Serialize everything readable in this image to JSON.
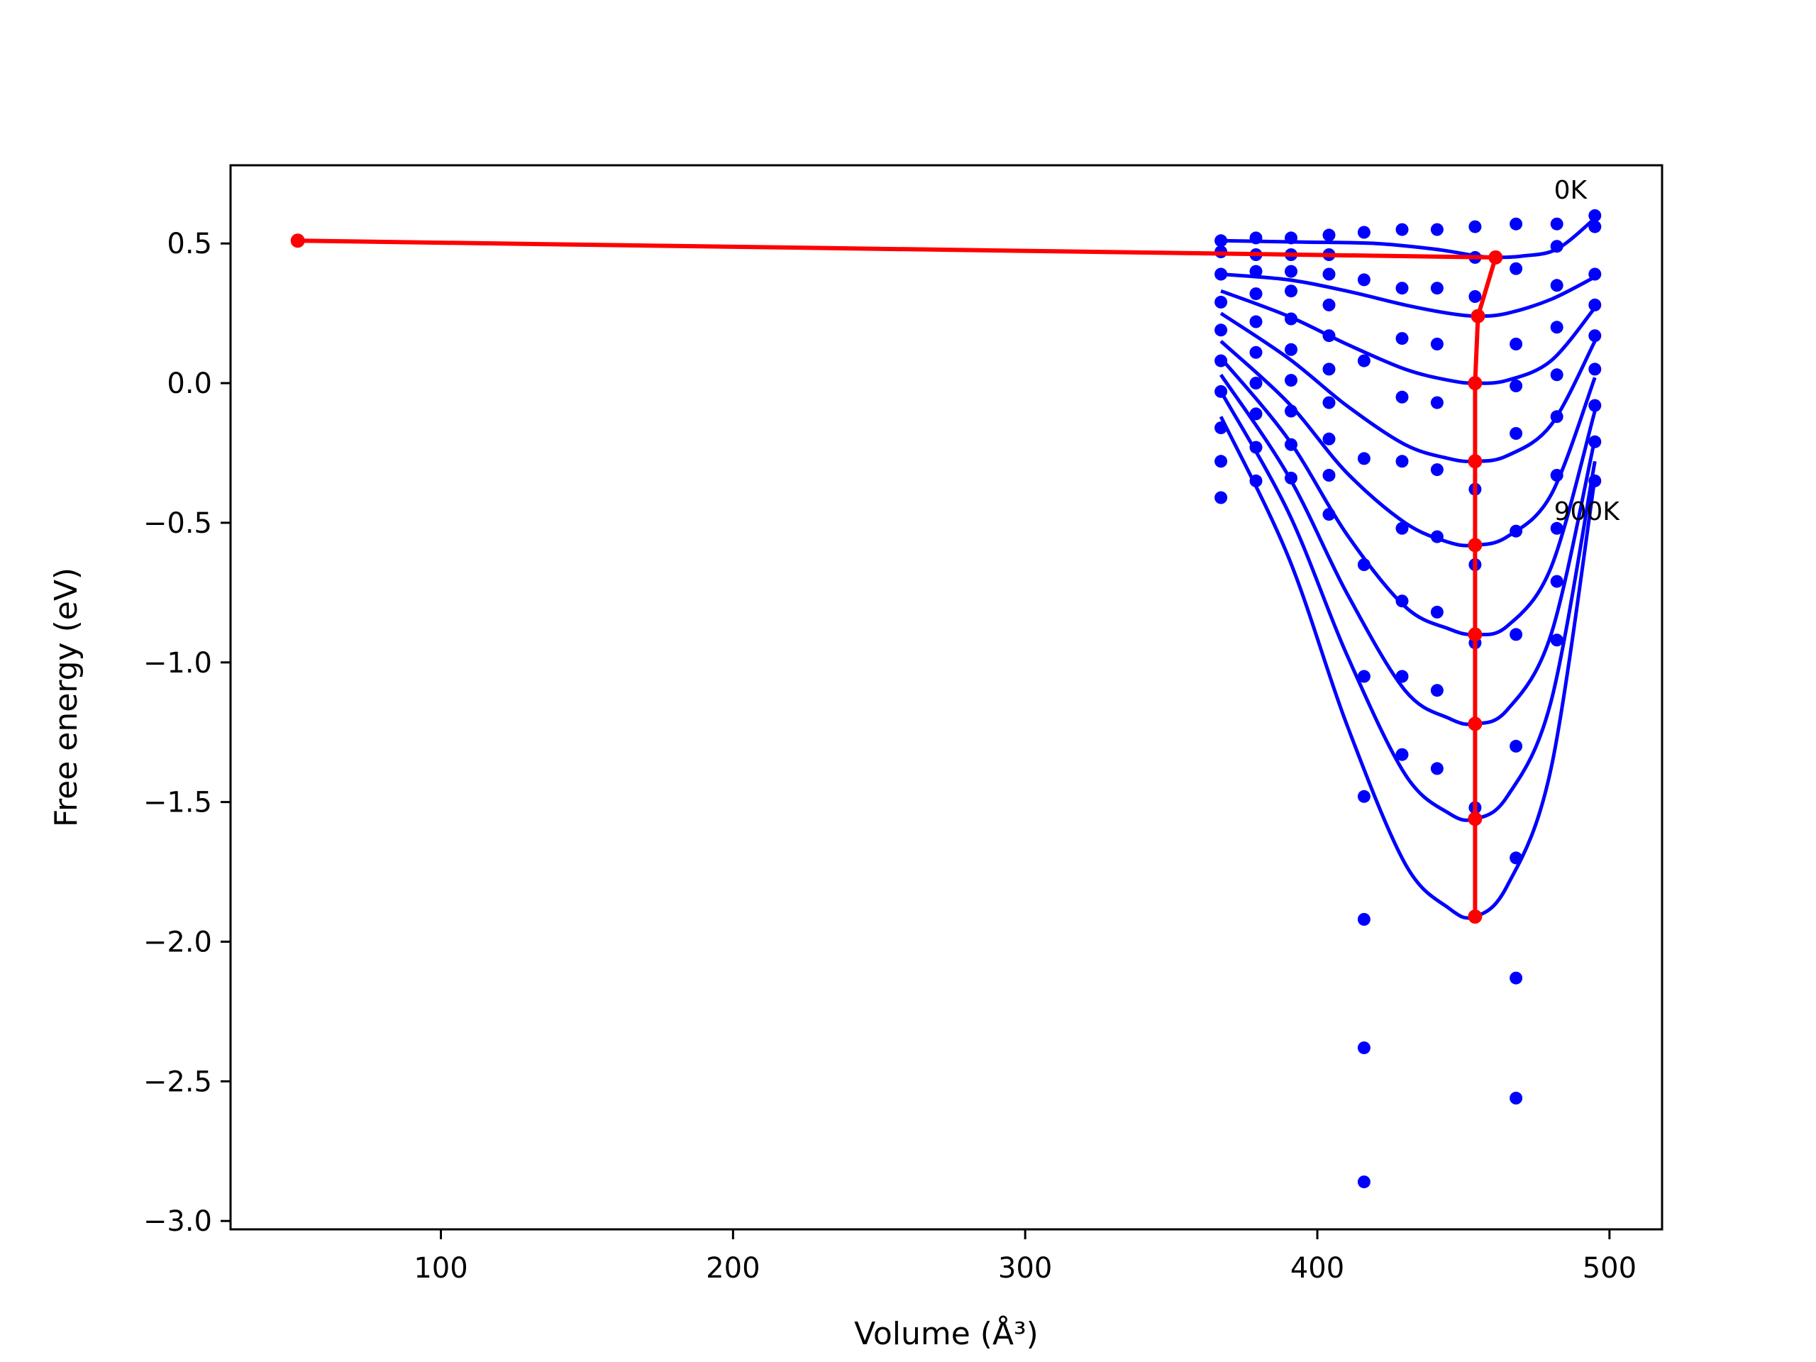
{
  "chart_data": {
    "type": "line",
    "xlabel": "Volume (Å³)",
    "ylabel": "Free energy (eV)",
    "xlim": [
      28,
      518
    ],
    "ylim": [
      -3.03,
      0.78
    ],
    "x_ticks": [
      100,
      200,
      300,
      400,
      500
    ],
    "x_tick_labels": [
      "100",
      "200",
      "300",
      "400",
      "500"
    ],
    "y_ticks": [
      0.5,
      0.0,
      -0.5,
      -1.0,
      -1.5,
      -2.0,
      -2.5,
      -3.0
    ],
    "y_tick_labels": [
      "0.5",
      "0.0",
      "−0.5",
      "−1.0",
      "−1.5",
      "−2.0",
      "−2.5",
      "−3.0"
    ],
    "grid": false,
    "annotations": [
      {
        "text": "0K",
        "x": 481,
        "y": 0.66
      },
      {
        "text": "900K",
        "x": 481,
        "y": -0.49
      }
    ],
    "colors": {
      "fit_curves": "#0000ff",
      "data_points": "#0000ff",
      "minimum_path": "#ff0000"
    },
    "volumes": [
      367,
      379,
      391,
      404,
      416,
      429,
      441,
      454,
      468,
      482,
      495
    ],
    "fit_curves": [
      {
        "minimum": [
          461,
          0.45
        ],
        "points": [
          [
            367,
            0.51
          ],
          [
            395,
            0.505
          ],
          [
            420,
            0.5
          ],
          [
            440,
            0.48
          ],
          [
            455,
            0.455
          ],
          [
            461,
            0.45
          ],
          [
            470,
            0.455
          ],
          [
            482,
            0.48
          ],
          [
            495,
            0.59
          ]
        ]
      },
      {
        "minimum": [
          455,
          0.24
        ],
        "points": [
          [
            367,
            0.39
          ],
          [
            390,
            0.37
          ],
          [
            410,
            0.33
          ],
          [
            430,
            0.28
          ],
          [
            445,
            0.25
          ],
          [
            455,
            0.24
          ],
          [
            465,
            0.25
          ],
          [
            480,
            0.3
          ],
          [
            495,
            0.38
          ]
        ]
      },
      {
        "minimum": [
          454,
          0.0
        ],
        "points": [
          [
            367,
            0.33
          ],
          [
            390,
            0.24
          ],
          [
            410,
            0.14
          ],
          [
            430,
            0.05
          ],
          [
            445,
            0.01
          ],
          [
            454,
            0.0
          ],
          [
            465,
            0.01
          ],
          [
            480,
            0.08
          ],
          [
            495,
            0.27
          ]
        ]
      },
      {
        "minimum": [
          454,
          -0.28
        ],
        "points": [
          [
            367,
            0.25
          ],
          [
            390,
            0.09
          ],
          [
            410,
            -0.08
          ],
          [
            430,
            -0.22
          ],
          [
            445,
            -0.27
          ],
          [
            454,
            -0.28
          ],
          [
            465,
            -0.26
          ],
          [
            480,
            -0.15
          ],
          [
            495,
            0.15
          ]
        ]
      },
      {
        "minimum": [
          454,
          -0.58
        ],
        "points": [
          [
            367,
            0.15
          ],
          [
            390,
            -0.07
          ],
          [
            410,
            -0.32
          ],
          [
            430,
            -0.5
          ],
          [
            445,
            -0.57
          ],
          [
            454,
            -0.58
          ],
          [
            465,
            -0.55
          ],
          [
            480,
            -0.4
          ],
          [
            495,
            0.02
          ]
        ]
      },
      {
        "minimum": [
          454,
          -0.9
        ],
        "points": [
          [
            367,
            0.09
          ],
          [
            390,
            -0.2
          ],
          [
            410,
            -0.54
          ],
          [
            430,
            -0.8
          ],
          [
            445,
            -0.88
          ],
          [
            454,
            -0.9
          ],
          [
            465,
            -0.87
          ],
          [
            480,
            -0.66
          ],
          [
            495,
            -0.1
          ]
        ]
      },
      {
        "minimum": [
          454,
          -1.22
        ],
        "points": [
          [
            367,
            0.03
          ],
          [
            390,
            -0.33
          ],
          [
            410,
            -0.75
          ],
          [
            430,
            -1.1
          ],
          [
            445,
            -1.2
          ],
          [
            454,
            -1.22
          ],
          [
            465,
            -1.17
          ],
          [
            480,
            -0.9
          ],
          [
            495,
            -0.2
          ]
        ]
      },
      {
        "minimum": [
          454,
          -1.56
        ],
        "points": [
          [
            367,
            -0.03
          ],
          [
            390,
            -0.46
          ],
          [
            410,
            -0.97
          ],
          [
            430,
            -1.4
          ],
          [
            445,
            -1.54
          ],
          [
            454,
            -1.56
          ],
          [
            465,
            -1.48
          ],
          [
            480,
            -1.14
          ],
          [
            495,
            -0.28
          ]
        ]
      },
      {
        "minimum": [
          454,
          -1.91
        ],
        "points": [
          [
            367,
            -0.12
          ],
          [
            390,
            -0.62
          ],
          [
            410,
            -1.22
          ],
          [
            430,
            -1.72
          ],
          [
            445,
            -1.88
          ],
          [
            454,
            -1.91
          ],
          [
            465,
            -1.8
          ],
          [
            480,
            -1.38
          ],
          [
            495,
            -0.34
          ]
        ]
      }
    ],
    "data_points": [
      [
        367,
        0.51
      ],
      [
        379,
        0.52
      ],
      [
        391,
        0.52
      ],
      [
        404,
        0.53
      ],
      [
        416,
        0.54
      ],
      [
        429,
        0.55
      ],
      [
        441,
        0.55
      ],
      [
        454,
        0.56
      ],
      [
        468,
        0.57
      ],
      [
        482,
        0.57
      ],
      [
        495,
        0.6
      ],
      [
        367,
        0.47
      ],
      [
        379,
        0.46
      ],
      [
        391,
        0.46
      ],
      [
        404,
        0.46
      ],
      [
        454,
        0.45
      ],
      [
        482,
        0.49
      ],
      [
        495,
        0.56
      ],
      [
        367,
        0.39
      ],
      [
        379,
        0.4
      ],
      [
        391,
        0.4
      ],
      [
        404,
        0.39
      ],
      [
        416,
        0.37
      ],
      [
        429,
        0.34
      ],
      [
        441,
        0.34
      ],
      [
        454,
        0.31
      ],
      [
        468,
        0.41
      ],
      [
        482,
        0.35
      ],
      [
        495,
        0.39
      ],
      [
        367,
        0.29
      ],
      [
        379,
        0.32
      ],
      [
        391,
        0.33
      ],
      [
        404,
        0.28
      ],
      [
        429,
        0.16
      ],
      [
        441,
        0.14
      ],
      [
        468,
        0.14
      ],
      [
        482,
        0.2
      ],
      [
        495,
        0.28
      ],
      [
        367,
        0.19
      ],
      [
        379,
        0.22
      ],
      [
        391,
        0.23
      ],
      [
        404,
        0.17
      ],
      [
        416,
        0.08
      ],
      [
        495,
        0.17
      ],
      [
        367,
        0.08
      ],
      [
        379,
        0.11
      ],
      [
        391,
        0.12
      ],
      [
        404,
        0.05
      ],
      [
        468,
        -0.01
      ],
      [
        482,
        0.03
      ],
      [
        495,
        0.05
      ],
      [
        367,
        -0.03
      ],
      [
        379,
        0.0
      ],
      [
        391,
        0.01
      ],
      [
        404,
        -0.07
      ],
      [
        429,
        -0.05
      ],
      [
        441,
        -0.07
      ],
      [
        468,
        -0.18
      ],
      [
        482,
        -0.12
      ],
      [
        495,
        -0.08
      ],
      [
        367,
        -0.16
      ],
      [
        379,
        -0.11
      ],
      [
        391,
        -0.1
      ],
      [
        404,
        -0.2
      ],
      [
        495,
        -0.21
      ],
      [
        367,
        -0.28
      ],
      [
        379,
        -0.23
      ],
      [
        391,
        -0.22
      ],
      [
        404,
        -0.33
      ],
      [
        416,
        -0.27
      ],
      [
        429,
        -0.28
      ],
      [
        441,
        -0.31
      ],
      [
        454,
        -0.38
      ],
      [
        482,
        -0.33
      ],
      [
        495,
        -0.35
      ],
      [
        367,
        -0.41
      ],
      [
        379,
        -0.35
      ],
      [
        391,
        -0.34
      ],
      [
        404,
        -0.47
      ],
      [
        429,
        -0.52
      ],
      [
        441,
        -0.55
      ],
      [
        468,
        -0.53
      ],
      [
        482,
        -0.52
      ],
      [
        416,
        -0.65
      ],
      [
        454,
        -0.65
      ],
      [
        482,
        -0.71
      ],
      [
        429,
        -0.78
      ],
      [
        441,
        -0.82
      ],
      [
        454,
        -0.93
      ],
      [
        468,
        -0.9
      ],
      [
        482,
        -0.92
      ],
      [
        416,
        -1.05
      ],
      [
        429,
        -1.05
      ],
      [
        441,
        -1.1
      ],
      [
        429,
        -1.33
      ],
      [
        441,
        -1.38
      ],
      [
        468,
        -1.3
      ],
      [
        416,
        -1.48
      ],
      [
        454,
        -1.52
      ],
      [
        468,
        -1.7
      ],
      [
        416,
        -1.92
      ],
      [
        468,
        -2.13
      ],
      [
        416,
        -2.38
      ],
      [
        468,
        -2.56
      ],
      [
        416,
        -2.86
      ]
    ],
    "minimum_path": [
      [
        51,
        0.51
      ],
      [
        461,
        0.45
      ],
      [
        455,
        0.24
      ],
      [
        454,
        0.0
      ],
      [
        454,
        -0.28
      ],
      [
        454,
        -0.58
      ],
      [
        454,
        -0.9
      ],
      [
        454,
        -1.22
      ],
      [
        454,
        -1.56
      ],
      [
        454,
        -1.91
      ]
    ]
  }
}
